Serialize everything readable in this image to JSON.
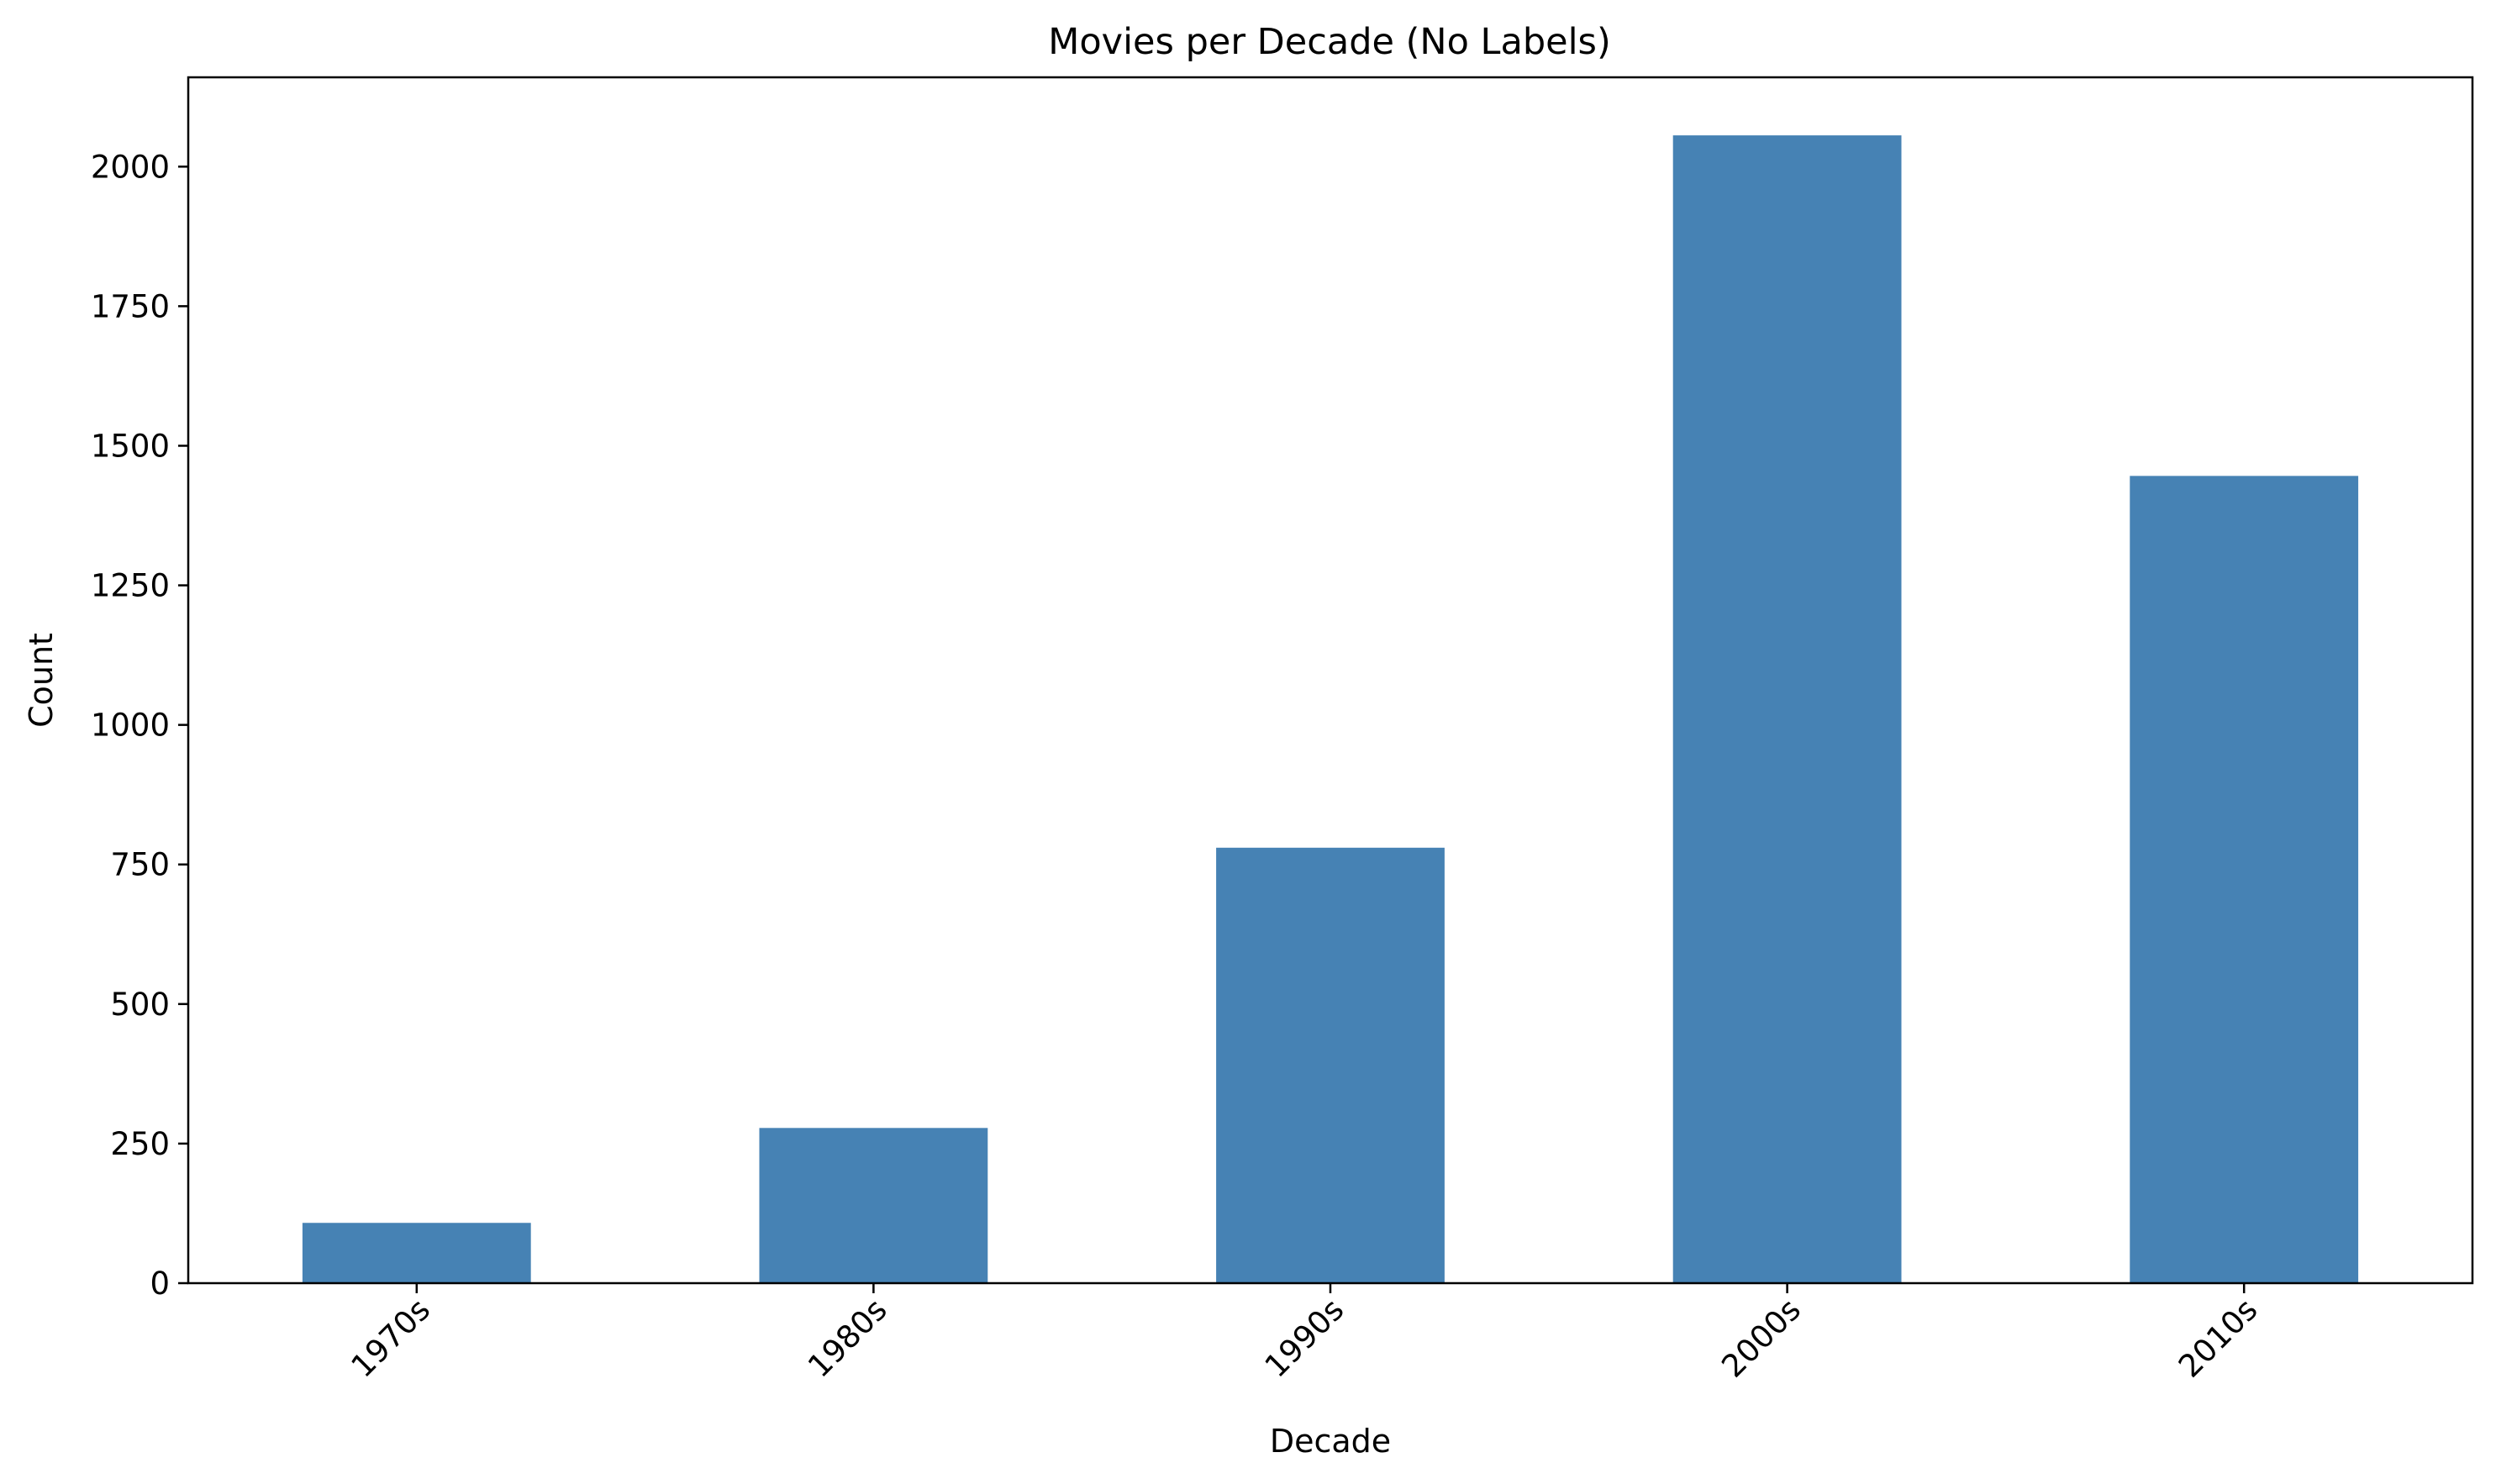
{
  "chart_data": {
    "type": "bar",
    "title": "Movies per Decade (No Labels)",
    "xlabel": "Decade",
    "ylabel": "Count",
    "categories": [
      "1970s",
      "1980s",
      "1990s",
      "2000s",
      "2010s"
    ],
    "values": [
      108,
      278,
      780,
      2056,
      1446
    ],
    "ylim": [
      0,
      2160
    ],
    "yticks": [
      0,
      250,
      500,
      750,
      1000,
      1250,
      1500,
      1750,
      2000
    ],
    "ytick_labels": [
      "0",
      "250",
      "500",
      "750",
      "1000",
      "1250",
      "1500",
      "1750",
      "2000"
    ],
    "grid": false,
    "legend": "none",
    "bar_color": "#4682b4",
    "xtick_rotation": "45 degrees"
  }
}
